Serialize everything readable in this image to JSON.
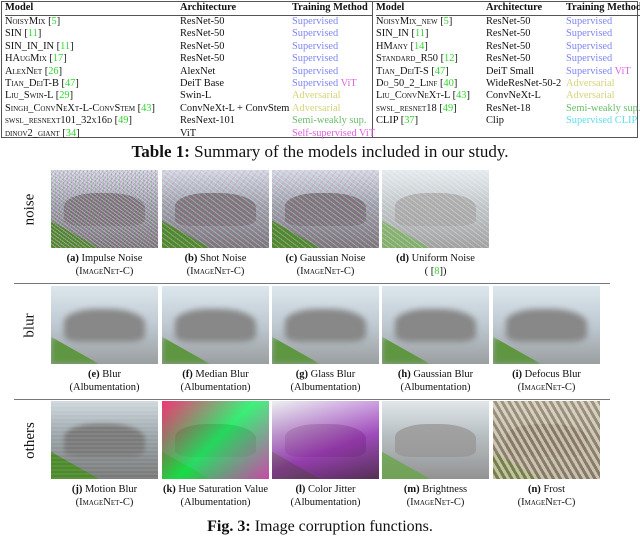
{
  "table": {
    "headers": [
      "Model",
      "Architecture",
      "Training Method"
    ],
    "left": [
      {
        "model": "NoisyMix",
        "ref": "5",
        "arch": "ResNet-50",
        "method": "Supervised",
        "mclass": "m-supervised"
      },
      {
        "model": "SIN",
        "ref": "11",
        "arch": "ResNet-50",
        "method": "Supervised",
        "mclass": "m-supervised"
      },
      {
        "model": "SIN_IN_IN",
        "ref": "11",
        "arch": "ResNet-50",
        "method": "Supervised",
        "mclass": "m-supervised"
      },
      {
        "model": "HAugMix",
        "ref": "17",
        "arch": "ResNet-50",
        "method": "Supervised",
        "mclass": "m-supervised"
      },
      {
        "model": "AlexNet",
        "ref": "26",
        "arch": "AlexNet",
        "method": "Supervised",
        "mclass": "m-supervised"
      },
      {
        "model": "Tian_DeiT-B",
        "ref": "47",
        "arch": "DeiT Base",
        "method": "Supervised",
        "vit": "ViT",
        "mclass": "m-supervised"
      },
      {
        "model": "Liu_Swin-L",
        "ref": "29",
        "arch": "Swin-L",
        "method": "Adversarial",
        "mclass": "m-adv"
      },
      {
        "model": "Singh_ConvNeXt-L-ConvStem",
        "ref": "43",
        "arch": "ConvNeXt-L + ConvStem",
        "method": "Adversarial",
        "mclass": "m-adv"
      },
      {
        "model": "swsl_resnext101_32x16d",
        "ref": "49",
        "arch": "ResNext-101",
        "method": "Semi-weakly sup.",
        "mclass": "m-semi"
      },
      {
        "model": "dinov2_giant",
        "ref": "34",
        "arch": "ViT",
        "method": "Self-supervised ViT",
        "mclass": "m-self"
      }
    ],
    "right": [
      {
        "model": "NoisyMix_new",
        "ref": "5",
        "arch": "ResNet-50",
        "method": "Supervised",
        "mclass": "m-supervised"
      },
      {
        "model": "SIN_IN",
        "ref": "11",
        "arch": "ResNet-50",
        "method": "Supervised",
        "mclass": "m-supervised"
      },
      {
        "model": "HMany",
        "ref": "14",
        "arch": "ResNet-50",
        "method": "Supervised",
        "mclass": "m-supervised"
      },
      {
        "model": "Standard_R50",
        "ref": "12",
        "arch": "ResNet-50",
        "method": "Supervised",
        "mclass": "m-supervised"
      },
      {
        "model": "Tian_DeiT-S",
        "ref": "47",
        "arch": "DeiT Small",
        "method": "Supervised",
        "vit": "ViT",
        "mclass": "m-supervised"
      },
      {
        "model": "Do_50_2_Linf",
        "ref": "40",
        "arch": "WideResNet-50-2",
        "method": "Adversarial",
        "mclass": "m-adv"
      },
      {
        "model": "Liu_ConvNeXt-L",
        "ref": "43",
        "arch": "ConvNeXt-L",
        "method": "Adversarial",
        "mclass": "m-adv"
      },
      {
        "model": "swsl_resnet18",
        "ref": "49",
        "arch": "ResNet-18",
        "method": "Semi-weakly sup.",
        "mclass": "m-semi"
      },
      {
        "model": "CLIP",
        "ref": "37",
        "arch": "Clip",
        "method": "Supervised CLIP",
        "mclass": "m-clip"
      }
    ],
    "caption_label": "Table 1:",
    "caption_text": " Summary of the models included in our study."
  },
  "figure": {
    "groups": [
      {
        "label": "noise",
        "items": [
          {
            "letter": "(a)",
            "name": "Impulse Noise",
            "source": "ImageNet-C",
            "style": "noise1"
          },
          {
            "letter": "(b)",
            "name": "Shot Noise",
            "source": "ImageNet-C",
            "style": "noise2"
          },
          {
            "letter": "(c)",
            "name": "Gaussian Noise",
            "source": "ImageNet-C",
            "style": "noise2"
          },
          {
            "letter": "(d)",
            "name": "Uniform Noise",
            "source": "",
            "ref": "8",
            "style": "noise3"
          }
        ]
      },
      {
        "label": "blur",
        "items": [
          {
            "letter": "(e)",
            "name": "Blur",
            "source": "Albumentation",
            "style": "blur"
          },
          {
            "letter": "(f)",
            "name": "Median Blur",
            "source": "Albumentation",
            "style": "blur"
          },
          {
            "letter": "(g)",
            "name": "Glass Blur",
            "source": "Albumentation",
            "style": "blur"
          },
          {
            "letter": "(h)",
            "name": "Gaussian Blur",
            "source": "Albumentation",
            "style": "blur"
          },
          {
            "letter": "(i)",
            "name": "Defocus Blur",
            "source": "ImageNet-C",
            "style": "blur"
          }
        ]
      },
      {
        "label": "others",
        "items": [
          {
            "letter": "(j)",
            "name": "Motion Blur",
            "source": "ImageNet-C",
            "style": "motion"
          },
          {
            "letter": "(k)",
            "name": "Hue Saturation Value",
            "source": "Albumentation",
            "style": "hue"
          },
          {
            "letter": "(l)",
            "name": "Color Jitter",
            "source": "Albumentation",
            "style": "jitter"
          },
          {
            "letter": "(m)",
            "name": "Brightness",
            "source": "ImageNet-C",
            "style": "bright"
          },
          {
            "letter": "(n)",
            "name": "Frost",
            "source": "ImageNet-C",
            "style": "frost"
          }
        ]
      }
    ],
    "caption_label": "Fig. 3:",
    "caption_text": " Image corruption functions."
  }
}
